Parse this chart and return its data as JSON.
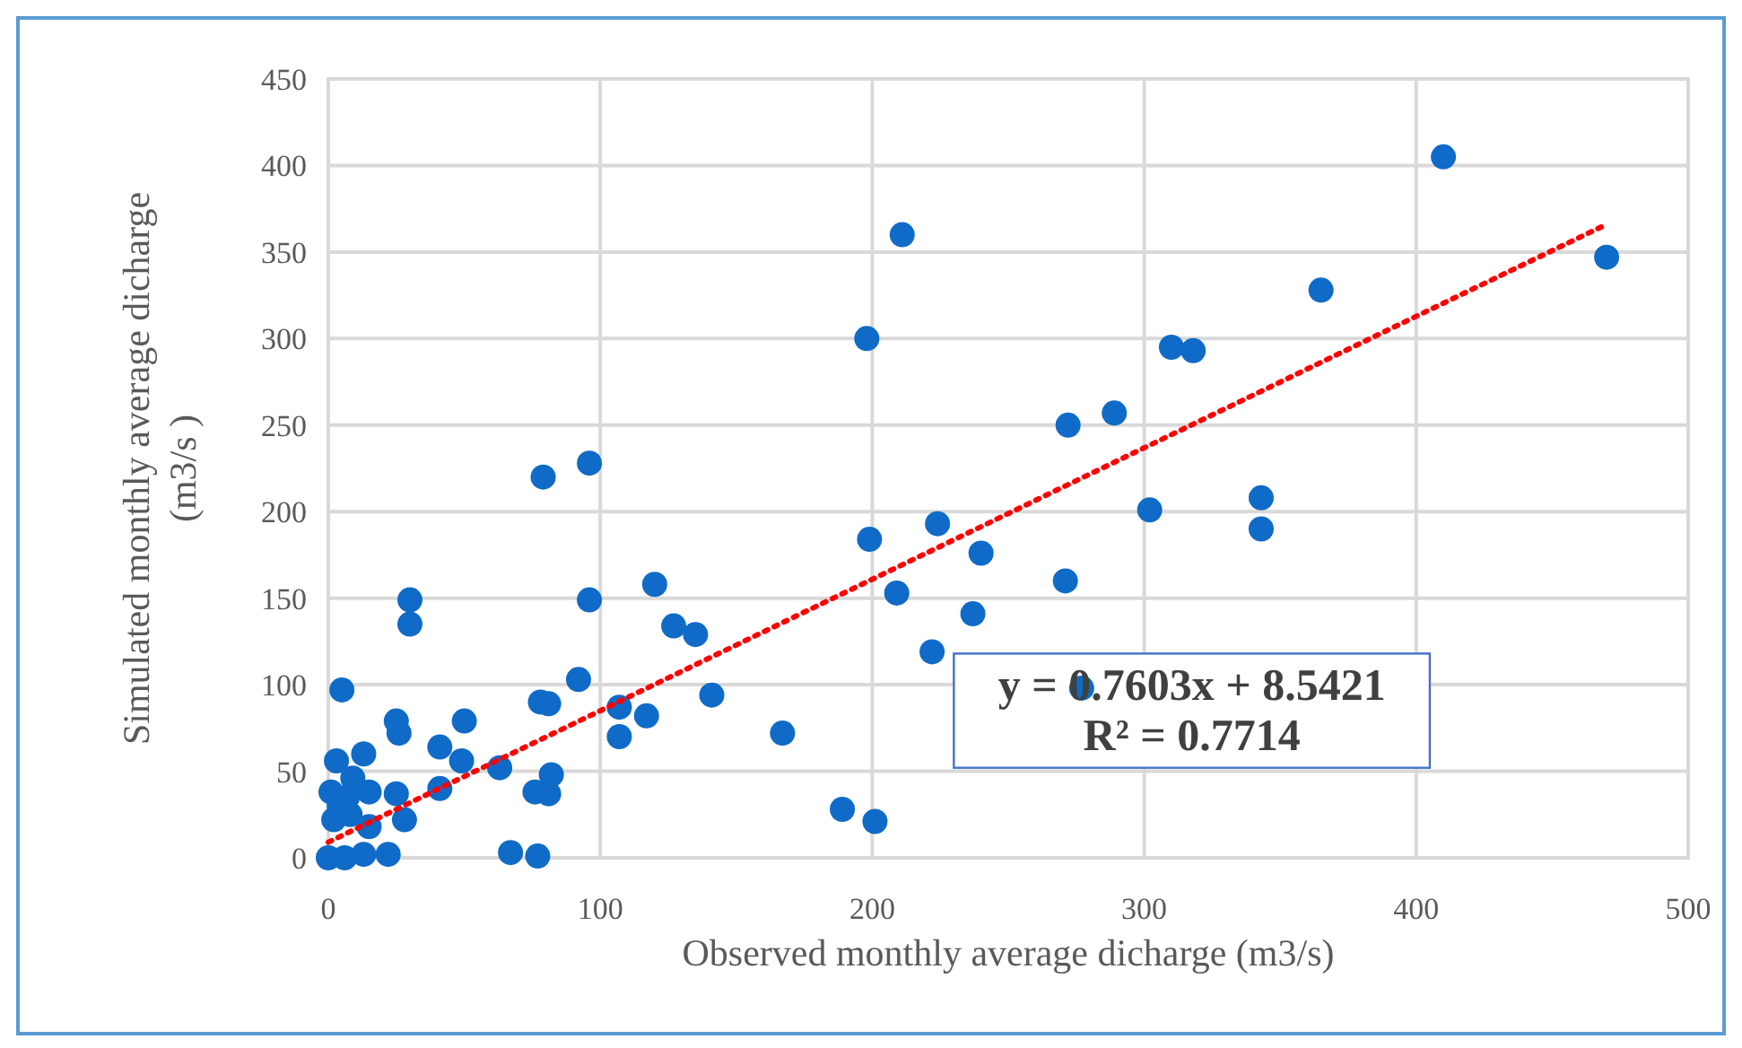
{
  "chart_data": {
    "type": "scatter",
    "xlabel": "Observed monthly average dicharge (m3/s)",
    "ylabel": "Simulated monthly average dicharge\n(m3/s )",
    "xlim": [
      0,
      500
    ],
    "ylim": [
      0,
      450
    ],
    "xticks": [
      0,
      100,
      200,
      300,
      400,
      500
    ],
    "yticks": [
      0,
      50,
      100,
      150,
      200,
      250,
      300,
      350,
      400,
      450
    ],
    "grid": true,
    "marker": "circle",
    "annotations": [
      "y = 0.7603x + 8.5421\nR² = 0.7714"
    ],
    "series": [
      {
        "color": "#0f6bc7",
        "x": [
          410,
          470,
          365,
          211,
          198,
          310,
          318,
          289,
          272,
          96,
          79,
          343,
          302,
          224,
          343,
          199,
          240,
          209,
          271,
          96,
          30,
          30,
          120,
          127,
          135,
          237,
          222,
          277,
          5,
          92,
          167,
          141,
          107,
          117,
          107,
          78,
          81,
          50,
          25,
          26,
          41,
          49,
          63,
          13,
          3,
          82,
          41,
          76,
          81,
          25,
          15,
          1,
          9,
          28,
          189,
          201,
          67,
          77,
          22,
          13,
          0,
          8,
          4,
          15,
          2,
          6,
          7
        ],
        "values": [
          405,
          347,
          328,
          360,
          300,
          295,
          293,
          257,
          250,
          228,
          220,
          208,
          201,
          193,
          190,
          184,
          176,
          153,
          160,
          149,
          149,
          135,
          158,
          134,
          129,
          141,
          119,
          98,
          97,
          103,
          72,
          94,
          87,
          82,
          70,
          90,
          89,
          79,
          79,
          72,
          64,
          56,
          52,
          60,
          56,
          48,
          40,
          38,
          37,
          37,
          38,
          38,
          46,
          22,
          28,
          21,
          3,
          1,
          2,
          2,
          0,
          25,
          30,
          18,
          22,
          0,
          35
        ]
      },
      {
        "type": "line",
        "color": "#ff0000",
        "line_style": "dotted",
        "marker": "none",
        "x": [
          0,
          470
        ],
        "values": [
          9,
          366
        ]
      }
    ]
  }
}
